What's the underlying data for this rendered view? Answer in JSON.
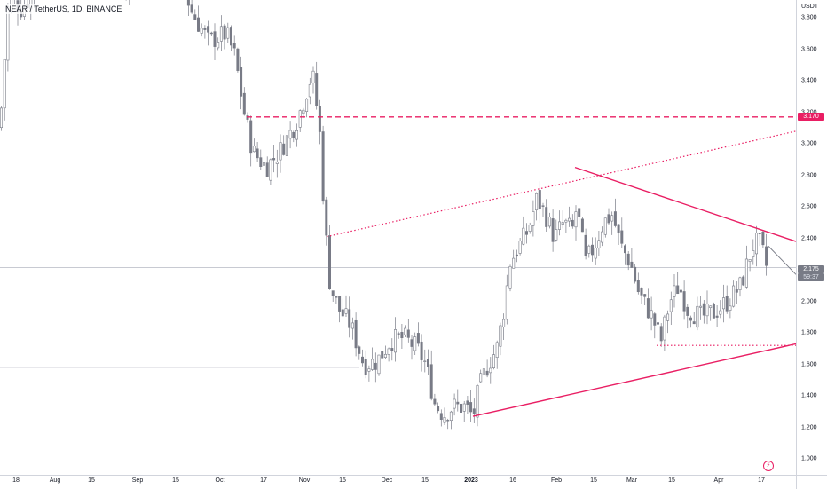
{
  "header": {
    "symbol_title": "NEAR / TetherUS, 1D, BINANCE"
  },
  "price_axis": {
    "currency": "USDT",
    "ticks": [
      "3.800",
      "3.600",
      "3.400",
      "3.200",
      "3.000",
      "2.800",
      "2.600",
      "2.400",
      "2.200",
      "2.000",
      "1.800",
      "1.600",
      "1.400",
      "1.200",
      "1.000"
    ],
    "labels": {
      "resistance": "3.170",
      "last_price": "2.175",
      "countdown": "59:37"
    }
  },
  "time_axis": {
    "ticks": [
      {
        "label": "18",
        "bold": false
      },
      {
        "label": "Aug",
        "bold": false
      },
      {
        "label": "15",
        "bold": false
      },
      {
        "label": "Sep",
        "bold": false
      },
      {
        "label": "15",
        "bold": false
      },
      {
        "label": "Oct",
        "bold": false
      },
      {
        "label": "17",
        "bold": false
      },
      {
        "label": "Nov",
        "bold": false
      },
      {
        "label": "15",
        "bold": false
      },
      {
        "label": "Dec",
        "bold": false
      },
      {
        "label": "15",
        "bold": false
      },
      {
        "label": "2023",
        "bold": true
      },
      {
        "label": "16",
        "bold": false
      },
      {
        "label": "Feb",
        "bold": false
      },
      {
        "label": "15",
        "bold": false
      },
      {
        "label": "Mar",
        "bold": false
      },
      {
        "label": "15",
        "bold": false
      },
      {
        "label": "Apr",
        "bold": false
      },
      {
        "label": "17",
        "bold": false
      }
    ]
  },
  "colors": {
    "candle": "#787b86",
    "candle_up_body": "#ffffff",
    "candle_down_body": "#787b86",
    "drawing": "#e91e63",
    "grid_line": "#b2b5be"
  },
  "icons": {
    "replay": "lightning-circle-icon"
  },
  "chart_data": {
    "type": "candlestick",
    "price_range": [
      0.92,
      3.93
    ],
    "price_scale": "linear",
    "grid": false,
    "current_price": 2.175,
    "resistance_level": 3.17,
    "close_path": [
      [
        0,
        3.1
      ],
      [
        10,
        3.95
      ],
      [
        25,
        3.85
      ],
      [
        45,
        4.05
      ],
      [
        90,
        4.1
      ],
      [
        130,
        4.2
      ],
      [
        140,
        4.0
      ],
      [
        160,
        4.1
      ],
      [
        205,
        4.05
      ],
      [
        215,
        3.85
      ],
      [
        235,
        3.65
      ],
      [
        255,
        3.7
      ],
      [
        265,
        3.55
      ],
      [
        275,
        3.2
      ],
      [
        285,
        2.95
      ],
      [
        300,
        2.85
      ],
      [
        315,
        2.95
      ],
      [
        335,
        3.15
      ],
      [
        352,
        3.45
      ],
      [
        360,
        3.1
      ],
      [
        366,
        2.5
      ],
      [
        372,
        2.1
      ],
      [
        382,
        1.95
      ],
      [
        395,
        1.85
      ],
      [
        403,
        1.72
      ],
      [
        410,
        1.6
      ],
      [
        425,
        1.62
      ],
      [
        440,
        1.75
      ],
      [
        455,
        1.77
      ],
      [
        470,
        1.7
      ],
      [
        480,
        1.6
      ],
      [
        490,
        1.35
      ],
      [
        500,
        1.28
      ],
      [
        510,
        1.33
      ],
      [
        525,
        1.33
      ],
      [
        533,
        1.27
      ],
      [
        540,
        1.45
      ],
      [
        550,
        1.6
      ],
      [
        560,
        1.7
      ],
      [
        568,
        1.95
      ],
      [
        575,
        2.25
      ],
      [
        585,
        2.35
      ],
      [
        595,
        2.45
      ],
      [
        605,
        2.65
      ],
      [
        615,
        2.55
      ],
      [
        625,
        2.4
      ],
      [
        635,
        2.5
      ],
      [
        645,
        2.45
      ],
      [
        650,
        2.6
      ],
      [
        660,
        2.25
      ],
      [
        670,
        2.35
      ],
      [
        680,
        2.5
      ],
      [
        690,
        2.55
      ],
      [
        700,
        2.35
      ],
      [
        710,
        2.25
      ],
      [
        720,
        2.05
      ],
      [
        735,
        1.9
      ],
      [
        745,
        1.75
      ],
      [
        755,
        2.0
      ],
      [
        765,
        2.1
      ],
      [
        775,
        1.95
      ],
      [
        790,
        1.9
      ],
      [
        805,
        1.93
      ],
      [
        820,
        2.0
      ],
      [
        835,
        2.1
      ],
      [
        848,
        2.35
      ],
      [
        855,
        2.38
      ],
      [
        860,
        2.3
      ],
      [
        866,
        2.175
      ]
    ],
    "drawings": [
      {
        "type": "trendline",
        "style": "solid",
        "from": [
          648,
          2.85
        ],
        "to": [
          897,
          2.38
        ]
      },
      {
        "type": "trendline",
        "style": "solid",
        "from": [
          533,
          1.27
        ],
        "to": [
          897,
          1.73
        ]
      },
      {
        "type": "trendline",
        "style": "dotted",
        "from": [
          368,
          2.41
        ],
        "to": [
          897,
          3.08
        ]
      },
      {
        "type": "horizontal",
        "style": "dashed",
        "price": 3.17,
        "from_x": 278,
        "to_x": 897
      },
      {
        "type": "horizontal",
        "style": "dotted",
        "price": 1.72,
        "from_x": 740,
        "to_x": 897
      },
      {
        "type": "projection",
        "style": "solid-gray",
        "from": [
          866,
          2.35
        ],
        "to": [
          897,
          2.17
        ]
      }
    ]
  }
}
